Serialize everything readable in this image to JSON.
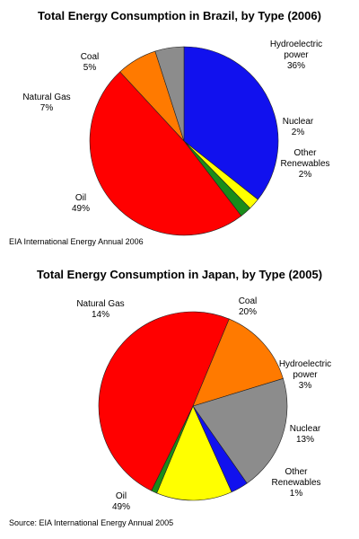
{
  "chart_data": [
    {
      "type": "pie",
      "title": "Total Energy Consumption in Brazil, by Type (2006)",
      "source": "EIA International Energy Annual 2006",
      "slices": [
        {
          "label": "Hydroelectric power",
          "label_lines": [
            "Hydroelectric",
            "power"
          ],
          "pct_text": "36%",
          "value": 36,
          "color": "#1111ee"
        },
        {
          "label": "Nuclear",
          "label_lines": [
            "Nuclear"
          ],
          "pct_text": "2%",
          "value": 2,
          "color": "#ffff00"
        },
        {
          "label": "Other Renewables",
          "label_lines": [
            "Other",
            "Renewables"
          ],
          "pct_text": "2%",
          "value": 2,
          "color": "#1a8c1a"
        },
        {
          "label": "Oil",
          "label_lines": [
            "Oil"
          ],
          "pct_text": "49%",
          "value": 49,
          "color": "#ff0000"
        },
        {
          "label": "Natural Gas",
          "label_lines": [
            "Natural Gas"
          ],
          "pct_text": "7%",
          "value": 7,
          "color": "#ff7a00"
        },
        {
          "label": "Coal",
          "label_lines": [
            "Coal"
          ],
          "pct_text": "5%",
          "value": 5,
          "color": "#8c8c8c"
        }
      ]
    },
    {
      "type": "pie",
      "title": "Total Energy Consumption in Japan, by Type (2005)",
      "source": "Source: EIA International Energy Annual 2005",
      "slices": [
        {
          "label": "Coal",
          "label_lines": [
            "Coal"
          ],
          "pct_text": "20%",
          "value": 20,
          "color": "#8c8c8c"
        },
        {
          "label": "Hydroelectric power",
          "label_lines": [
            "Hydroelectric",
            "power"
          ],
          "pct_text": "3%",
          "value": 3,
          "color": "#1111ee"
        },
        {
          "label": "Nuclear",
          "label_lines": [
            "Nuclear"
          ],
          "pct_text": "13%",
          "value": 13,
          "color": "#ffff00"
        },
        {
          "label": "Other Renewables",
          "label_lines": [
            "Other",
            "Renewables"
          ],
          "pct_text": "1%",
          "value": 1,
          "color": "#1a8c1a"
        },
        {
          "label": "Oil",
          "label_lines": [
            "Oil"
          ],
          "pct_text": "49%",
          "value": 49,
          "color": "#ff0000"
        },
        {
          "label": "Natural Gas",
          "label_lines": [
            "Natural Gas"
          ],
          "pct_text": "14%",
          "value": 14,
          "color": "#ff7a00"
        }
      ]
    }
  ]
}
